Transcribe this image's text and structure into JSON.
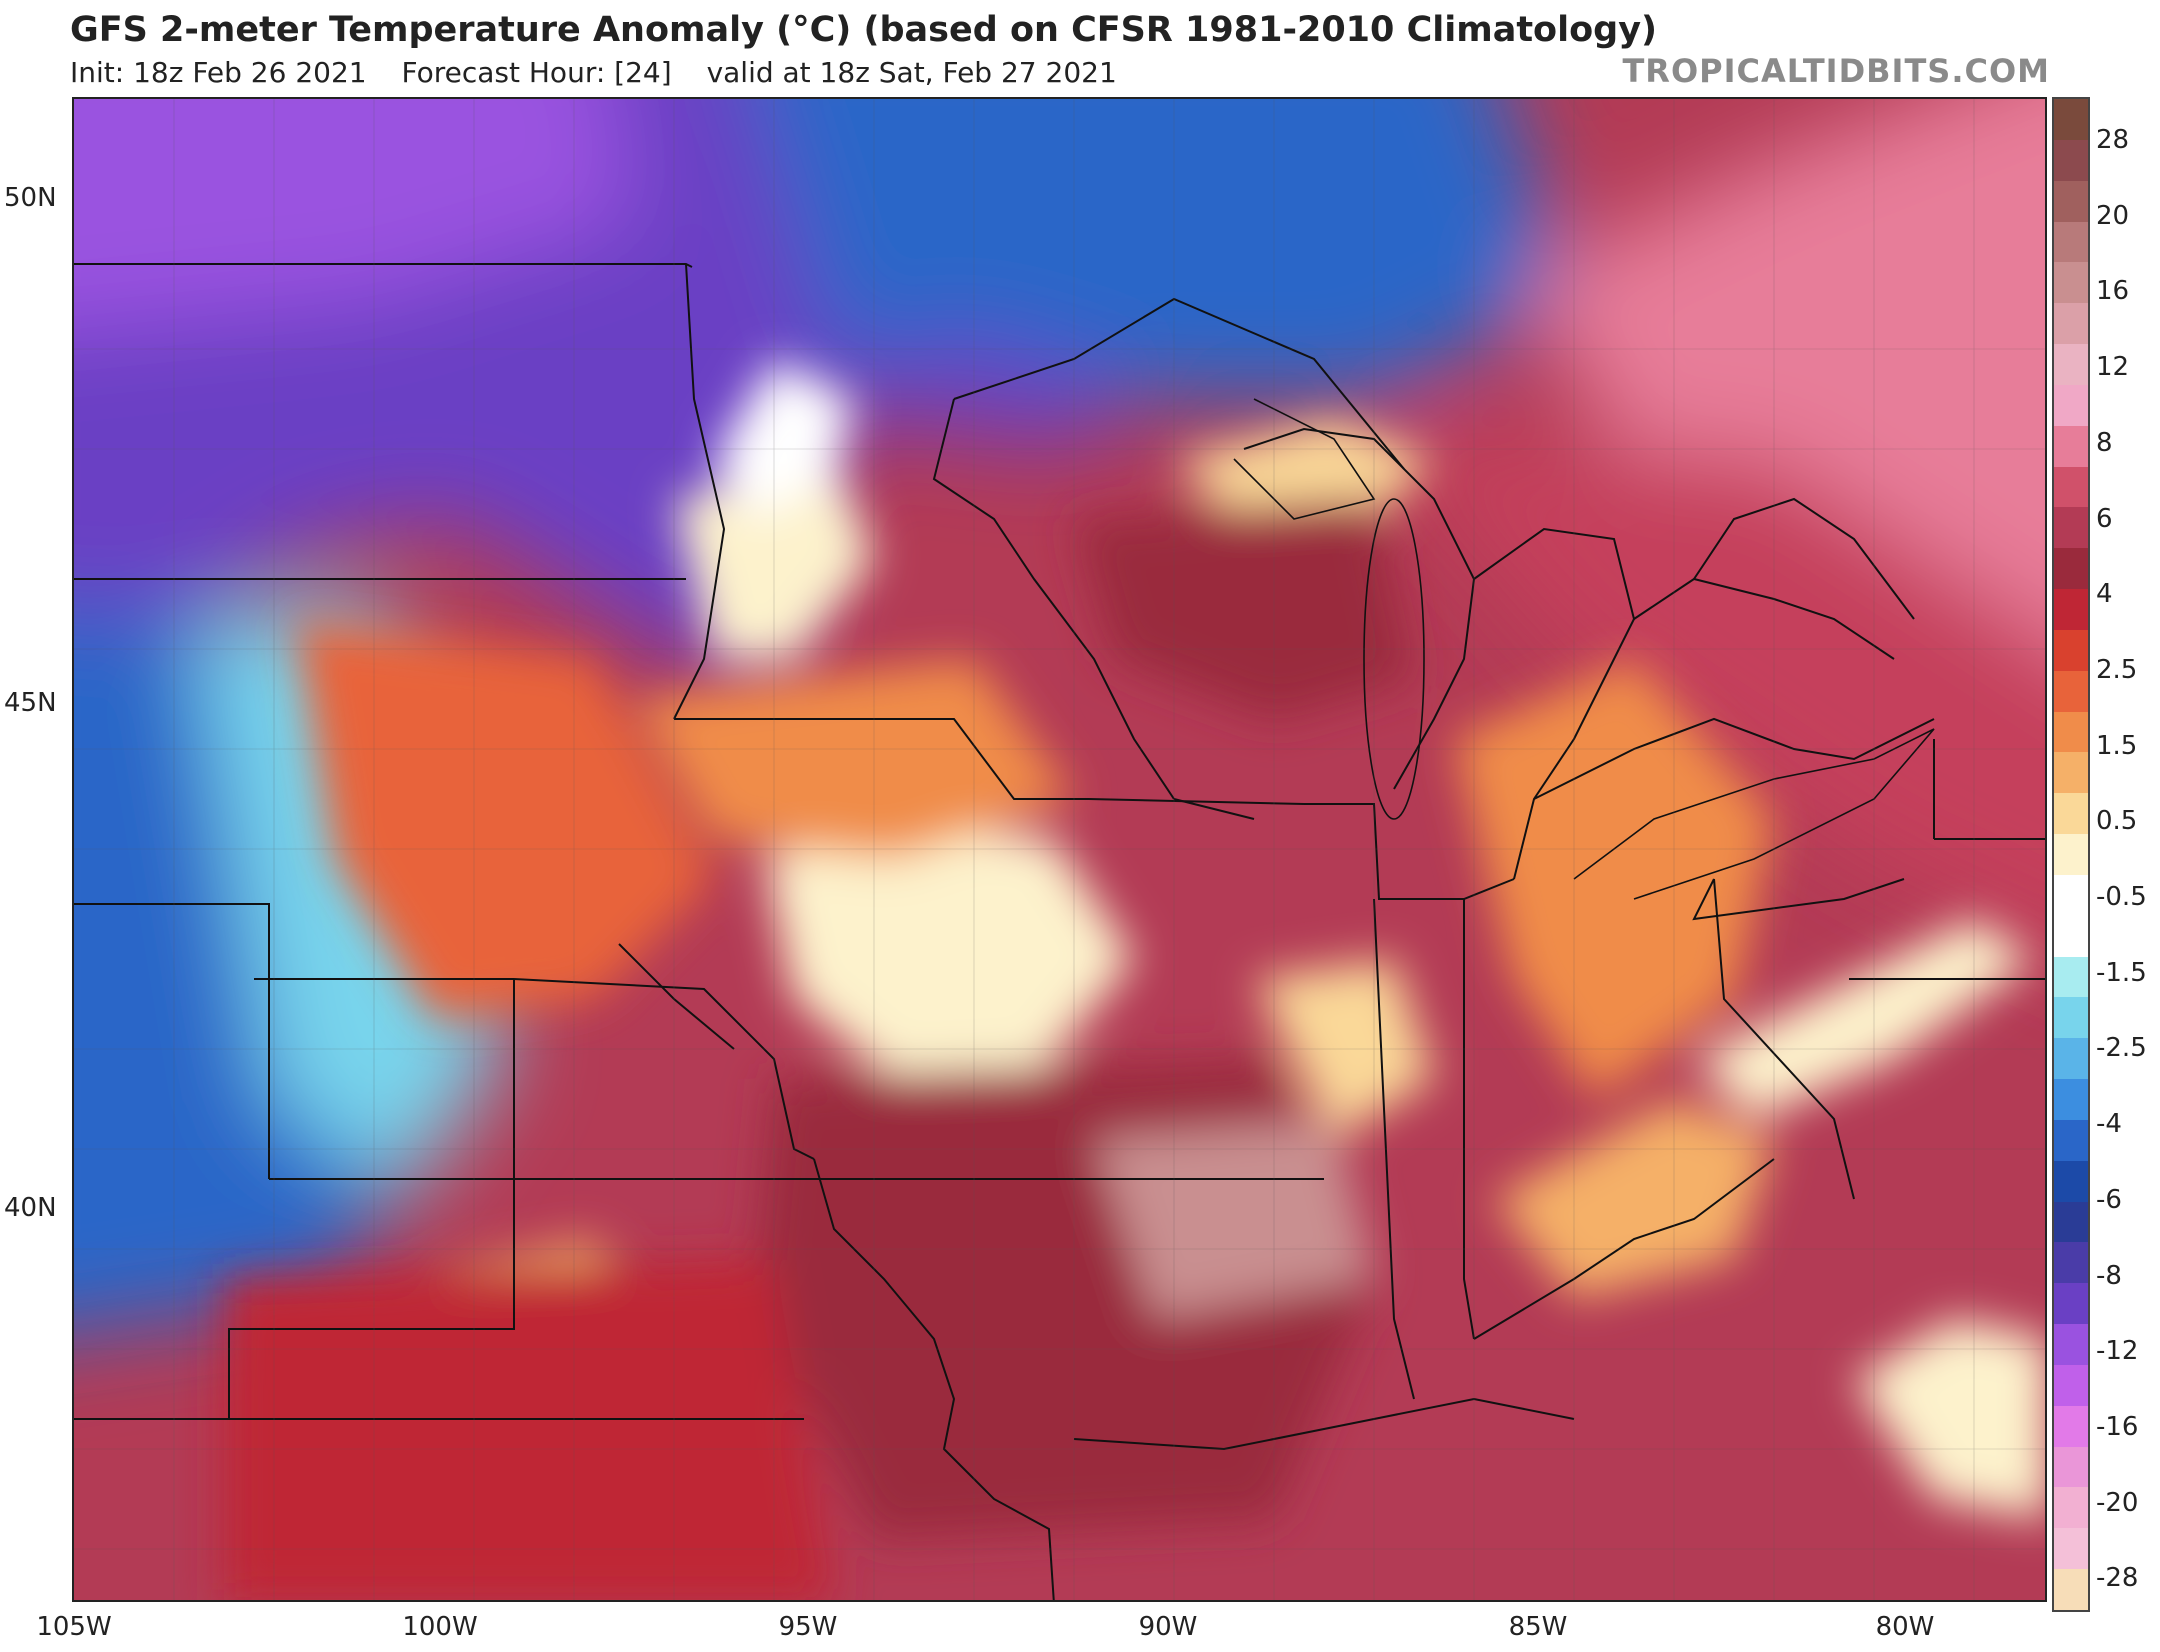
{
  "header": {
    "title": "GFS 2-meter Temperature Anomaly (°C) (based on CFSR 1981-2010 Climatology)",
    "init": "Init: 18z Feb 26 2021",
    "forecast_hour": "Forecast Hour: [24]",
    "valid": "valid at 18z Sat, Feb 27 2021",
    "brand": "TROPICALTIDBITS.COM"
  },
  "axes": {
    "lat_labels": [
      "50N",
      "45N",
      "40N"
    ],
    "lon_labels": [
      "105W",
      "100W",
      "95W",
      "90W",
      "85W",
      "80W"
    ]
  },
  "colorbar": {
    "labels": [
      "28",
      "20",
      "16",
      "12",
      "8",
      "6",
      "4",
      "2.5",
      "1.5",
      "0.5",
      "-0.5",
      "-1.5",
      "-2.5",
      "-4",
      "-6",
      "-8",
      "-12",
      "-16",
      "-20",
      "-28"
    ],
    "swatches": [
      "#7a4a3c",
      "#8c4a4e",
      "#a0605e",
      "#b87a7a",
      "#c98f90",
      "#dba0a8",
      "#eab3c2",
      "#f0a8c6",
      "#e77d99",
      "#d0516a",
      "#b33b55",
      "#9a2a3c",
      "#bf2635",
      "#d9412e",
      "#e8633a",
      "#f08c4a",
      "#f5b068",
      "#fad898",
      "#fdf2cc",
      "#ffffff",
      "#ffffff",
      "#a8ecf0",
      "#78d4ec",
      "#5ab4e8",
      "#3c8ee0",
      "#2a66c8",
      "#1c4aa8",
      "#2a3c96",
      "#4a3ca8",
      "#6a40c4",
      "#9a52e0",
      "#c060ea",
      "#e27ae8",
      "#ea96d8",
      "#f2b0d2",
      "#f4c0d8",
      "#f7ddb8"
    ]
  }
}
